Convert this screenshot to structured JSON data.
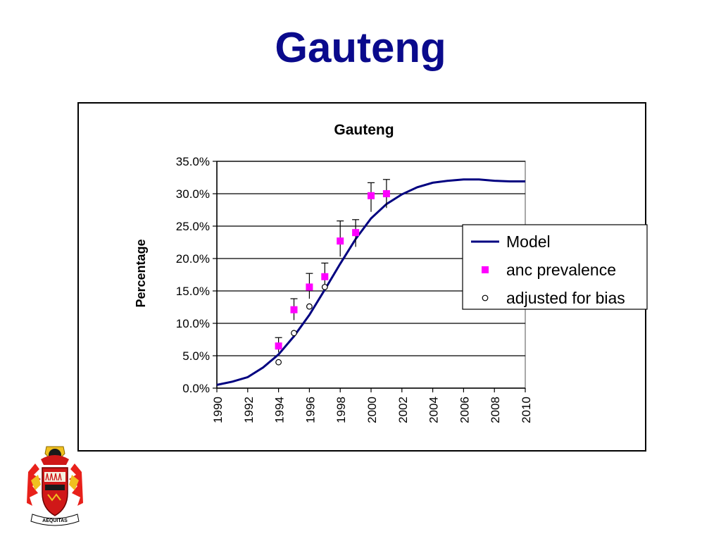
{
  "slide": {
    "title": "Gauteng"
  },
  "chart_data": {
    "type": "line",
    "title": "Gauteng",
    "xlabel": "",
    "ylabel": "Percentage",
    "xlim": [
      1990,
      2010
    ],
    "ylim": [
      0,
      0.35
    ],
    "x_ticks": [
      "1990",
      "1992",
      "1994",
      "1996",
      "1998",
      "2000",
      "2002",
      "2004",
      "2006",
      "2008",
      "2010"
    ],
    "y_ticks": [
      "0.0%",
      "5.0%",
      "10.0%",
      "15.0%",
      "20.0%",
      "25.0%",
      "30.0%",
      "35.0%"
    ],
    "grid": "horizontal",
    "legend_position": "right",
    "series": [
      {
        "name": "Model",
        "kind": "line",
        "color": "#000080",
        "x": [
          1990,
          1991,
          1992,
          1993,
          1994,
          1995,
          1996,
          1997,
          1998,
          1999,
          2000,
          2001,
          2002,
          2003,
          2004,
          2005,
          2006,
          2007,
          2008,
          2009,
          2010
        ],
        "y": [
          0.005,
          0.01,
          0.017,
          0.032,
          0.052,
          0.08,
          0.113,
          0.152,
          0.192,
          0.23,
          0.262,
          0.284,
          0.299,
          0.31,
          0.317,
          0.32,
          0.322,
          0.322,
          0.32,
          0.319,
          0.319
        ]
      },
      {
        "name": "anc prevalence",
        "kind": "scatter",
        "marker": "square",
        "color": "#ff00ff",
        "x": [
          1994,
          1995,
          1996,
          1997,
          1998,
          1999,
          2000,
          2001
        ],
        "y": [
          0.065,
          0.121,
          0.156,
          0.172,
          0.227,
          0.24,
          0.297,
          0.3
        ],
        "err_low": [
          0.055,
          0.105,
          0.138,
          0.157,
          0.203,
          0.218,
          0.272,
          0.278
        ],
        "err_high": [
          0.078,
          0.138,
          0.177,
          0.193,
          0.258,
          0.26,
          0.317,
          0.322
        ]
      },
      {
        "name": "adjusted for bias",
        "kind": "scatter",
        "marker": "circle-open",
        "color": "#000000",
        "x": [
          1994,
          1995,
          1996,
          1997
        ],
        "y": [
          0.04,
          0.085,
          0.126,
          0.156
        ]
      }
    ]
  },
  "logo": {
    "name": "crest-logo",
    "motto": "AEQUITAS"
  }
}
